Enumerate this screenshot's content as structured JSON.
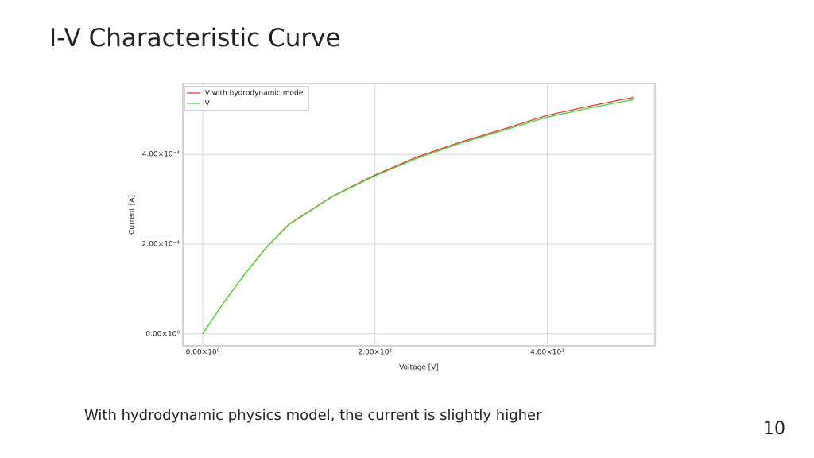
{
  "slide": {
    "title": "I-V Characteristic Curve",
    "caption": "With hydrodynamic physics model, the current is slightly higher",
    "page_number": "10"
  },
  "chart_data": {
    "type": "line",
    "x_label": "Voltage [V]",
    "y_label": "Current [A]",
    "x": [
      0,
      25,
      50,
      75,
      100,
      150,
      200,
      250,
      300,
      350,
      400,
      450,
      500
    ],
    "series": [
      {
        "name": "IV with hydrodynamic model",
        "color": "#e03a3a",
        "values": [
          0,
          7.1e-05,
          0.000136,
          0.000195,
          0.000244,
          0.000306,
          0.000354,
          0.000395,
          0.000428,
          0.000457,
          0.000487,
          0.000508,
          0.000527
        ]
      },
      {
        "name": "IV",
        "color": "#4cd43c",
        "values": [
          0,
          7.1e-05,
          0.000136,
          0.000194,
          0.000243,
          0.000305,
          0.000352,
          0.000392,
          0.000425,
          0.000454,
          0.000483,
          0.000504,
          0.000522
        ]
      }
    ],
    "xlim": [
      -23,
      525
    ],
    "ylim": [
      -2.7e-05,
      0.000558
    ],
    "xticks": [
      {
        "value": 0,
        "label": "0.00×10⁰"
      },
      {
        "value": 200,
        "label": "2.00×10²"
      },
      {
        "value": 400,
        "label": "4.00×10²"
      }
    ],
    "yticks": [
      {
        "value": 0,
        "label": "0.00×10⁰"
      },
      {
        "value": 0.0002,
        "label": "2.00×10⁻⁴"
      },
      {
        "value": 0.0004,
        "label": "4.00×10⁻⁴"
      }
    ],
    "grid": true,
    "legend": "top-left"
  }
}
